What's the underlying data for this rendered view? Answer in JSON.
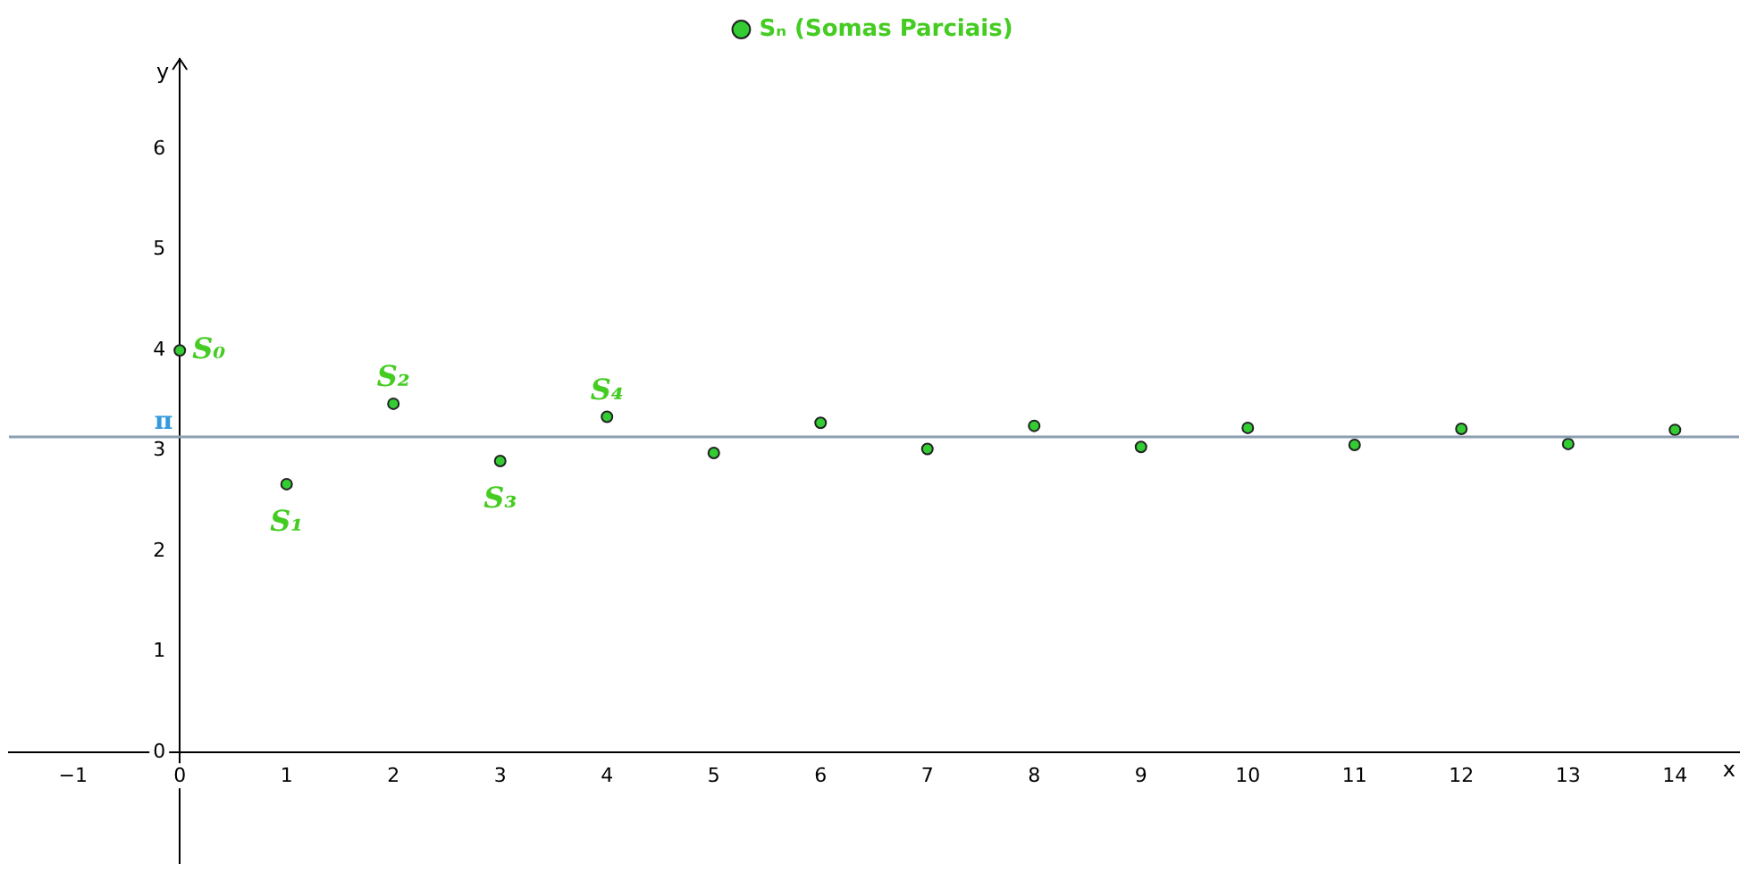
{
  "chart_data": {
    "type": "scatter",
    "xlabel": "x",
    "ylabel": "y",
    "x": [
      0,
      1,
      2,
      3,
      4,
      5,
      6,
      7,
      8,
      9,
      10,
      11,
      12,
      13,
      14
    ],
    "series": [
      {
        "name": "Sₙ (Somas Parciais)",
        "color": "#33cc33",
        "values": [
          4,
          2.67,
          3.47,
          2.9,
          3.34,
          2.98,
          3.28,
          3.02,
          3.25,
          3.04,
          3.23,
          3.06,
          3.22,
          3.07,
          3.21
        ]
      }
    ],
    "annotations": [
      {
        "text": "S₀",
        "x": 0,
        "y": 4
      },
      {
        "text": "S₁",
        "x": 1,
        "y": 2.67
      },
      {
        "text": "S₂",
        "x": 2,
        "y": 3.47
      },
      {
        "text": "S₃",
        "x": 3,
        "y": 2.9
      },
      {
        "text": "S₄",
        "x": 4,
        "y": 3.34
      }
    ],
    "ref_lines": [
      {
        "axis": "y",
        "value": 3.14,
        "label": "π",
        "color": "#8c9eb0"
      }
    ],
    "xlim": [
      -1.6,
      14.6
    ],
    "ylim": [
      -1.1,
      6.9
    ],
    "xticks": [
      -1,
      0,
      1,
      2,
      3,
      4,
      5,
      6,
      7,
      8,
      9,
      10,
      11,
      12,
      13,
      14
    ],
    "yticks": [
      0,
      1,
      2,
      3,
      4,
      5,
      6
    ],
    "grid": false,
    "legend": "top",
    "marker": "circle"
  }
}
